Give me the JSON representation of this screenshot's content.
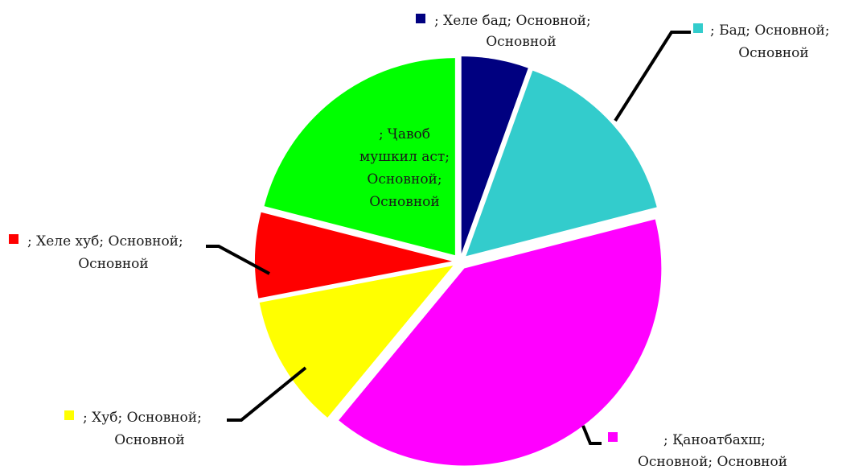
{
  "chart_data": {
    "type": "pie",
    "series": [
      {
        "name": "",
        "values": [
          5.5,
          15.5,
          40,
          11,
          7,
          21
        ],
        "categories": [
          "; Хеле бад; Основной; Основной",
          "; Бад; Основной; Основной",
          "; Қаноатбахш; Основной; Основной",
          "; Хуб; Основной; Основной",
          "; Хеле хуб; Основной; Основной",
          "; Ҷавоб мушкил аст; Основной; Основной"
        ]
      }
    ],
    "categories": [
      "; Хеле бад; Основной; Основной",
      "; Бад; Основной; Основной",
      "; Қаноатбахш; Основной; Основной",
      "; Хуб; Основной; Основной",
      "; Хеле хуб; Основной; Основной",
      "; Ҷавоб мушкил аст; Основной; Основной"
    ],
    "values": [
      5.5,
      15.5,
      40,
      11,
      7,
      21
    ],
    "colors": [
      "#000080",
      "#33CCCC",
      "#FF00FF",
      "#FFFF00",
      "#FF0000",
      "#00FF00"
    ],
    "exploded": true,
    "labels": [
      {
        "lines": [
          "; Хеле бад; Основной;",
          "Основной"
        ]
      },
      {
        "lines": [
          "; Бад; Основной;",
          "Основной"
        ]
      },
      {
        "lines": [
          "; Қаноатбахш;",
          "Основной; Основной"
        ]
      },
      {
        "lines": [
          "; Хуб; Основной;",
          "Основной"
        ]
      },
      {
        "lines": [
          "; Хеле хуб; Основной;",
          "Основной"
        ]
      },
      {
        "lines": [
          "; Ҷавоб",
          "мушкил аст;",
          "Основной;",
          "Основной"
        ]
      }
    ]
  }
}
